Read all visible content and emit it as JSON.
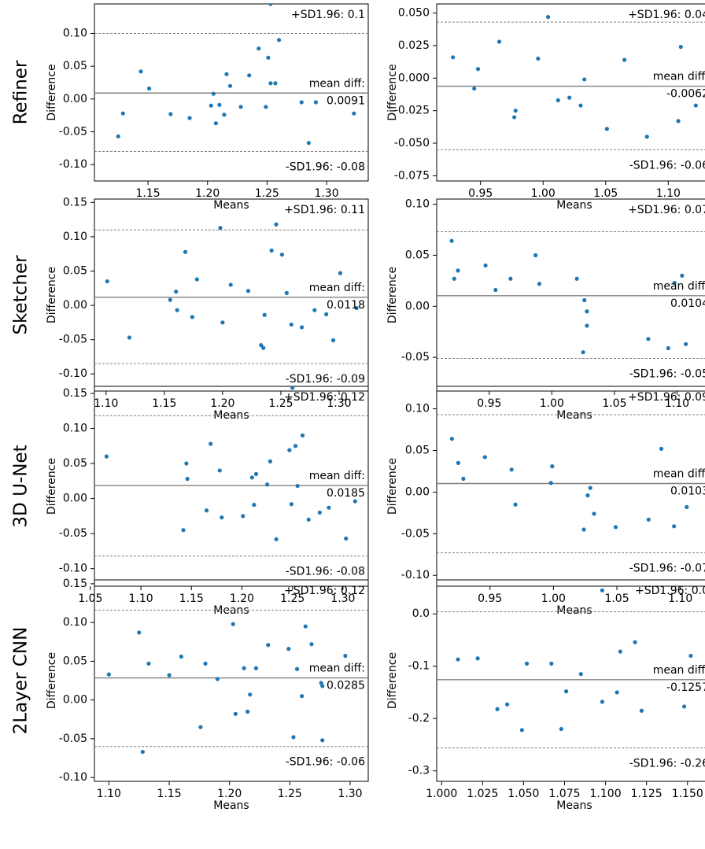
{
  "colors": {
    "point": "#1f77b4",
    "axis": "#000000",
    "line": "#808080"
  },
  "rows": [
    {
      "label": "Refiner"
    },
    {
      "label": "Sketcher"
    },
    {
      "label": "3D U-Net"
    },
    {
      "label": "2Layer CNN"
    }
  ],
  "chart_data": [
    {
      "type": "scatter",
      "row": "Refiner",
      "column": 1,
      "xlabel": "Means",
      "ylabel": "Difference",
      "xlim": [
        1.105,
        1.335
      ],
      "ylim": [
        -0.125,
        0.145
      ],
      "xticks": [
        "1.15",
        "1.20",
        "1.25",
        "1.30"
      ],
      "yticks": [
        "-0.10",
        "-0.05",
        "0.00",
        "0.05",
        "0.10"
      ],
      "mean": 0.0091,
      "upper": 0.1,
      "lower": -0.08,
      "upper_label": "+SD1.96: 0.1",
      "mean_label": "mean diff:",
      "mean_value": "0.0091",
      "lower_label": "-SD1.96: -0.08",
      "points": [
        [
          1.125,
          -0.057
        ],
        [
          1.129,
          -0.022
        ],
        [
          1.144,
          0.042
        ],
        [
          1.151,
          0.016
        ],
        [
          1.169,
          -0.023
        ],
        [
          1.185,
          -0.029
        ],
        [
          1.203,
          -0.01
        ],
        [
          1.205,
          0.008
        ],
        [
          1.207,
          -0.037
        ],
        [
          1.21,
          -0.009
        ],
        [
          1.214,
          -0.024
        ],
        [
          1.216,
          0.038
        ],
        [
          1.219,
          0.02
        ],
        [
          1.228,
          -0.012
        ],
        [
          1.235,
          0.036
        ],
        [
          1.243,
          0.077
        ],
        [
          1.249,
          -0.012
        ],
        [
          1.251,
          0.063
        ],
        [
          1.253,
          0.024
        ],
        [
          1.257,
          0.024
        ],
        [
          1.26,
          0.09
        ],
        [
          1.279,
          -0.005
        ],
        [
          1.285,
          -0.067
        ],
        [
          1.291,
          -0.005
        ],
        [
          1.323,
          -0.022
        ],
        [
          1.253,
          0.145
        ]
      ]
    },
    {
      "type": "scatter",
      "row": "Refiner",
      "column": 2,
      "xlabel": "Means",
      "ylabel": "Difference",
      "xlim": [
        0.915,
        1.135
      ],
      "ylim": [
        -0.079,
        0.057
      ],
      "xticks": [
        "0.95",
        "1.00",
        "1.05",
        "1.10"
      ],
      "yticks": [
        "-0.075",
        "-0.050",
        "-0.025",
        "0.000",
        "0.025",
        "0.050"
      ],
      "mean": -0.0062,
      "upper": 0.043,
      "lower": -0.055,
      "upper_label": "+SD1.96: 0.04",
      "mean_label": "mean diff:",
      "mean_value": "-0.0062",
      "lower_label": "-SD1.96: -0.06",
      "points": [
        [
          0.928,
          0.016
        ],
        [
          0.945,
          -0.008
        ],
        [
          0.948,
          0.007
        ],
        [
          0.965,
          0.028
        ],
        [
          0.977,
          -0.03
        ],
        [
          0.978,
          -0.025
        ],
        [
          0.996,
          0.015
        ],
        [
          1.004,
          0.047
        ],
        [
          1.012,
          -0.017
        ],
        [
          1.021,
          -0.015
        ],
        [
          1.03,
          -0.021
        ],
        [
          1.033,
          -0.001
        ],
        [
          1.051,
          -0.039
        ],
        [
          1.065,
          0.014
        ],
        [
          1.083,
          -0.045
        ],
        [
          1.108,
          -0.033
        ],
        [
          1.11,
          0.024
        ],
        [
          1.122,
          -0.021
        ]
      ]
    },
    {
      "type": "scatter",
      "row": "Sketcher",
      "column": 1,
      "xlabel": "Means",
      "ylabel": "Difference",
      "xlim": [
        1.09,
        1.325
      ],
      "ylim": [
        -0.125,
        0.155
      ],
      "xticks": [
        "1.10",
        "1.15",
        "1.20",
        "1.25",
        "1.30"
      ],
      "yticks": [
        "-0.10",
        "-0.05",
        "0.00",
        "0.05",
        "0.10",
        "0.15"
      ],
      "mean": 0.0118,
      "upper": 0.11,
      "lower": -0.085,
      "upper_label": "+SD1.96: 0.11",
      "mean_label": "mean diff:",
      "mean_value": "0.0118",
      "lower_label": "-SD1.96: -0.09",
      "points": [
        [
          1.101,
          0.035
        ],
        [
          1.12,
          -0.047
        ],
        [
          1.155,
          0.008
        ],
        [
          1.16,
          0.02
        ],
        [
          1.161,
          -0.007
        ],
        [
          1.168,
          0.078
        ],
        [
          1.174,
          -0.017
        ],
        [
          1.178,
          0.038
        ],
        [
          1.198,
          0.113
        ],
        [
          1.2,
          -0.025
        ],
        [
          1.207,
          0.03
        ],
        [
          1.222,
          0.021
        ],
        [
          1.233,
          -0.058
        ],
        [
          1.235,
          -0.062
        ],
        [
          1.236,
          -0.014
        ],
        [
          1.242,
          0.08
        ],
        [
          1.246,
          0.118
        ],
        [
          1.251,
          0.074
        ],
        [
          1.255,
          0.018
        ],
        [
          1.259,
          -0.028
        ],
        [
          1.268,
          -0.032
        ],
        [
          1.279,
          -0.007
        ],
        [
          1.289,
          -0.013
        ],
        [
          1.295,
          -0.051
        ],
        [
          1.301,
          0.047
        ],
        [
          1.315,
          -0.004
        ]
      ]
    },
    {
      "type": "scatter",
      "row": "Sketcher",
      "column": 2,
      "xlabel": "Means",
      "ylabel": "Difference",
      "xlim": [
        0.908,
        1.128
      ],
      "ylim": [
        -0.083,
        0.105
      ],
      "xticks": [
        "0.95",
        "1.00",
        "1.05",
        "1.10"
      ],
      "yticks": [
        "-0.05",
        "0.00",
        "0.05",
        "0.10"
      ],
      "mean": 0.0104,
      "upper": 0.073,
      "lower": -0.051,
      "upper_label": "+SD1.96: 0.07",
      "mean_label": "mean diff:",
      "mean_value": "0.0104",
      "lower_label": "-SD1.96: -0.05",
      "points": [
        [
          0.92,
          0.064
        ],
        [
          0.922,
          0.027
        ],
        [
          0.925,
          0.035
        ],
        [
          0.947,
          0.04
        ],
        [
          0.955,
          0.016
        ],
        [
          0.967,
          0.027
        ],
        [
          0.987,
          0.05
        ],
        [
          0.99,
          0.022
        ],
        [
          1.02,
          0.027
        ],
        [
          1.025,
          -0.045
        ],
        [
          1.026,
          0.006
        ],
        [
          1.028,
          -0.005
        ],
        [
          1.028,
          -0.019
        ],
        [
          1.077,
          -0.032
        ],
        [
          1.093,
          -0.041
        ],
        [
          1.098,
          0.023
        ],
        [
          1.104,
          0.03
        ],
        [
          1.107,
          -0.037
        ]
      ]
    },
    {
      "type": "scatter",
      "row": "3D U-Net",
      "column": 1,
      "xlabel": "Means",
      "ylabel": "Difference",
      "xlim": [
        1.054,
        1.325
      ],
      "ylim": [
        -0.125,
        0.16
      ],
      "xticks": [
        "1.05",
        "1.10",
        "1.15",
        "1.20",
        "1.25",
        "1.30"
      ],
      "yticks": [
        "-0.10",
        "-0.05",
        "0.00",
        "0.05",
        "0.10",
        "0.15"
      ],
      "mean": 0.0185,
      "upper": 0.118,
      "lower": -0.082,
      "upper_label": "+SD1.96: 0.12",
      "mean_label": "mean diff:",
      "mean_value": "0.0185",
      "lower_label": "-SD1.96: -0.08",
      "points": [
        [
          1.066,
          0.06
        ],
        [
          1.142,
          -0.045
        ],
        [
          1.145,
          0.05
        ],
        [
          1.146,
          0.028
        ],
        [
          1.165,
          -0.017
        ],
        [
          1.169,
          0.078
        ],
        [
          1.178,
          0.04
        ],
        [
          1.18,
          -0.027
        ],
        [
          1.201,
          -0.025
        ],
        [
          1.21,
          0.03
        ],
        [
          1.212,
          -0.009
        ],
        [
          1.214,
          0.035
        ],
        [
          1.225,
          0.02
        ],
        [
          1.228,
          0.053
        ],
        [
          1.234,
          -0.058
        ],
        [
          1.247,
          0.069
        ],
        [
          1.249,
          -0.008
        ],
        [
          1.253,
          0.075
        ],
        [
          1.255,
          0.018
        ],
        [
          1.26,
          0.09
        ],
        [
          1.266,
          -0.03
        ],
        [
          1.277,
          -0.02
        ],
        [
          1.286,
          -0.013
        ],
        [
          1.303,
          -0.057
        ],
        [
          1.312,
          -0.004
        ],
        [
          1.25,
          0.158
        ]
      ]
    },
    {
      "type": "scatter",
      "row": "3D U-Net",
      "column": 2,
      "xlabel": "Means",
      "ylabel": "Difference",
      "xlim": [
        0.908,
        1.125
      ],
      "ylim": [
        -0.113,
        0.127
      ],
      "xticks": [
        "0.95",
        "1.00",
        "1.05",
        "1.10"
      ],
      "yticks": [
        "-0.10",
        "-0.05",
        "0.00",
        "0.05",
        "0.10"
      ],
      "mean": 0.0103,
      "upper": 0.093,
      "lower": -0.073,
      "upper_label": "+SD1.96: 0.09",
      "mean_label": "mean diff:",
      "mean_value": "0.0103",
      "lower_label": "-SD1.96: -0.07",
      "points": [
        [
          0.92,
          0.064
        ],
        [
          0.925,
          0.035
        ],
        [
          0.929,
          0.016
        ],
        [
          0.946,
          0.042
        ],
        [
          0.967,
          0.027
        ],
        [
          0.97,
          -0.015
        ],
        [
          0.998,
          0.011
        ],
        [
          0.999,
          0.031
        ],
        [
          1.024,
          -0.045
        ],
        [
          1.027,
          -0.004
        ],
        [
          1.029,
          0.005
        ],
        [
          1.032,
          -0.026
        ],
        [
          1.049,
          -0.042
        ],
        [
          1.075,
          -0.033
        ],
        [
          1.085,
          0.052
        ],
        [
          1.095,
          -0.041
        ],
        [
          1.105,
          -0.018
        ]
      ]
    },
    {
      "type": "scatter",
      "row": "2Layer CNN",
      "column": 1,
      "xlabel": "Means",
      "ylabel": "Difference",
      "xlim": [
        1.088,
        1.315
      ],
      "ylim": [
        -0.105,
        0.155
      ],
      "xticks": [
        "1.10",
        "1.15",
        "1.20",
        "1.25",
        "1.30"
      ],
      "yticks": [
        "-0.10",
        "-0.05",
        "0.00",
        "0.05",
        "0.10",
        "0.15"
      ],
      "mean": 0.0285,
      "upper": 0.116,
      "lower": -0.06,
      "upper_label": "+SD1.96: 0.12",
      "mean_label": "mean diff:",
      "mean_value": "0.0285",
      "lower_label": "-SD1.96: -0.06",
      "points": [
        [
          1.1,
          0.033
        ],
        [
          1.125,
          0.087
        ],
        [
          1.128,
          -0.067
        ],
        [
          1.133,
          0.047
        ],
        [
          1.15,
          0.032
        ],
        [
          1.16,
          0.056
        ],
        [
          1.176,
          -0.035
        ],
        [
          1.18,
          0.047
        ],
        [
          1.19,
          0.027
        ],
        [
          1.203,
          0.098
        ],
        [
          1.205,
          -0.018
        ],
        [
          1.212,
          0.041
        ],
        [
          1.215,
          -0.015
        ],
        [
          1.217,
          0.007
        ],
        [
          1.222,
          0.041
        ],
        [
          1.232,
          0.071
        ],
        [
          1.249,
          0.066
        ],
        [
          1.253,
          -0.048
        ],
        [
          1.256,
          0.04
        ],
        [
          1.26,
          0.005
        ],
        [
          1.263,
          0.095
        ],
        [
          1.268,
          0.072
        ],
        [
          1.276,
          0.022
        ],
        [
          1.277,
          -0.052
        ],
        [
          1.296,
          0.057
        ],
        [
          1.277,
          0.018
        ]
      ]
    },
    {
      "type": "scatter",
      "row": "2Layer CNN",
      "column": 2,
      "xlabel": "Means",
      "ylabel": "Difference",
      "xlim": [
        0.997,
        1.165
      ],
      "ylim": [
        -0.32,
        0.065
      ],
      "xticks": [
        "1.000",
        "1.025",
        "1.050",
        "1.075",
        "1.100",
        "1.125",
        "1.150"
      ],
      "yticks": [
        "-0.3",
        "-0.2",
        "-0.1",
        "0.0"
      ],
      "mean": -0.1257,
      "upper": 0.004,
      "lower": -0.256,
      "upper_label": "+SD1.96: 0.0",
      "mean_label": "mean diff:",
      "mean_value": "-0.1257",
      "lower_label": "-SD1.96: -0.26",
      "points": [
        [
          1.01,
          -0.087
        ],
        [
          1.022,
          -0.085
        ],
        [
          1.034,
          -0.182
        ],
        [
          1.04,
          -0.173
        ],
        [
          1.049,
          -0.222
        ],
        [
          1.052,
          -0.095
        ],
        [
          1.067,
          -0.095
        ],
        [
          1.073,
          -0.22
        ],
        [
          1.076,
          -0.148
        ],
        [
          1.085,
          -0.115
        ],
        [
          1.098,
          0.045
        ],
        [
          1.098,
          -0.168
        ],
        [
          1.107,
          -0.15
        ],
        [
          1.109,
          -0.072
        ],
        [
          1.118,
          -0.054
        ],
        [
          1.122,
          -0.185
        ],
        [
          1.148,
          -0.177
        ],
        [
          1.152,
          -0.08
        ]
      ]
    }
  ]
}
